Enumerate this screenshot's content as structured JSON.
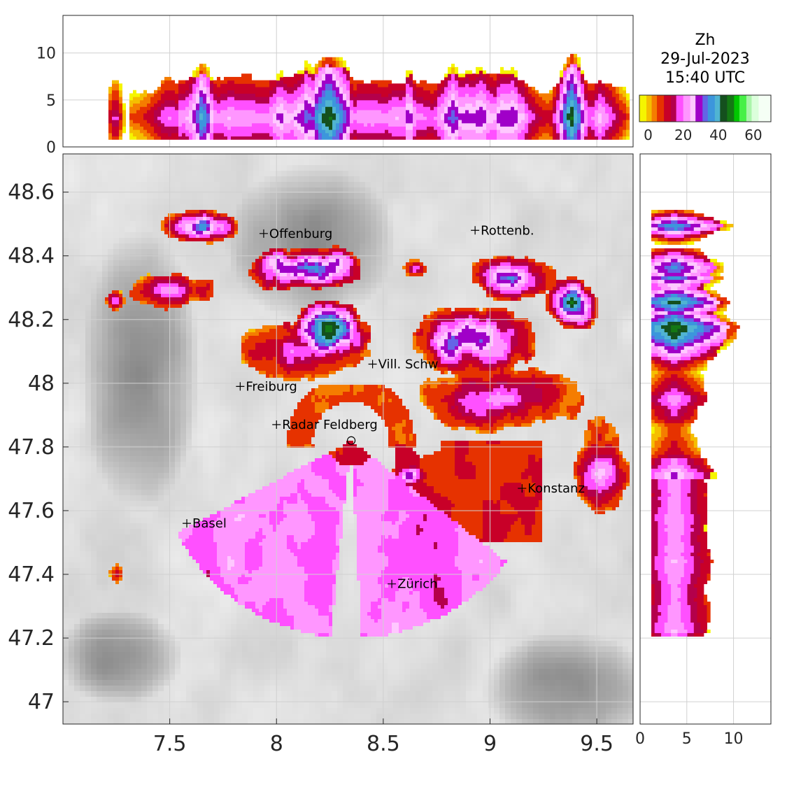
{
  "legend": {
    "title_lines": [
      "Zh",
      "29-Jul-2023",
      "15:40 UTC"
    ],
    "ticks": [
      {
        "value": 0,
        "label": "0"
      },
      {
        "value": 20,
        "label": "20"
      },
      {
        "value": 40,
        "label": "40"
      },
      {
        "value": 60,
        "label": "60"
      }
    ],
    "range": [
      -5,
      70
    ],
    "colors": [
      "#f5f500",
      "#f5be00",
      "#f57d00",
      "#e63200",
      "#c80028",
      "#b4004b",
      "#ff50ff",
      "#ff96ff",
      "#ffc8ff",
      "#a000c8",
      "#6464e6",
      "#3c96dc",
      "#50b4d2",
      "#14501e",
      "#147814",
      "#00c800",
      "#46f046",
      "#aaf5aa",
      "#dcffdc",
      "#f5fff5"
    ],
    "bounds": [
      -5,
      -1,
      2,
      5,
      9,
      13,
      16,
      20,
      24,
      27,
      31,
      34,
      38,
      41,
      45,
      49,
      52,
      56,
      59,
      63,
      70
    ]
  },
  "chart_data": [
    {
      "name": "map",
      "type": "heatmap",
      "xlim": [
        7.0,
        9.67
      ],
      "ylim": [
        46.93,
        48.72
      ],
      "xticks": [
        {
          "value": 7.5,
          "label": "7.5"
        },
        {
          "value": 8,
          "label": "8"
        },
        {
          "value": 8.5,
          "label": "8.5"
        },
        {
          "value": 9,
          "label": "9"
        },
        {
          "value": 9.5,
          "label": "9.5"
        }
      ],
      "yticks": [
        {
          "value": 47.0,
          "label": "47"
        },
        {
          "value": 47.2,
          "label": "47.2"
        },
        {
          "value": 47.4,
          "label": "47.4"
        },
        {
          "value": 47.6,
          "label": "47.6"
        },
        {
          "value": 47.8,
          "label": "47.8"
        },
        {
          "value": 48.0,
          "label": "48"
        },
        {
          "value": 48.2,
          "label": "48.2"
        },
        {
          "value": 48.4,
          "label": "48.4"
        },
        {
          "value": 48.6,
          "label": "48.6"
        }
      ],
      "radar_site": {
        "lon": 8.35,
        "lat": 47.82
      },
      "cities": [
        {
          "name": "Offenburg",
          "lon": 7.94,
          "lat": 48.47
        },
        {
          "name": "Rottenb.",
          "lon": 8.93,
          "lat": 48.48
        },
        {
          "name": "Vill. Schw",
          "lon": 8.45,
          "lat": 48.06
        },
        {
          "name": "Freiburg",
          "lon": 7.83,
          "lat": 47.99
        },
        {
          "name": "Radar Feldberg",
          "lon": 8.0,
          "lat": 47.87
        },
        {
          "name": "Konstanz",
          "lon": 9.15,
          "lat": 47.67
        },
        {
          "name": "Basel",
          "lon": 7.58,
          "lat": 47.56
        },
        {
          "name": "Zürich",
          "lon": 8.54,
          "lat": 47.37
        }
      ],
      "cells": [
        {
          "lon": 7.65,
          "lat": 48.49,
          "rx": 0.17,
          "ry": 0.05,
          "peak": 36
        },
        {
          "lon": 7.5,
          "lat": 48.29,
          "rx": 0.18,
          "ry": 0.06,
          "peak": 30
        },
        {
          "lon": 7.25,
          "lat": 48.26,
          "rx": 0.04,
          "ry": 0.03,
          "peak": 22
        },
        {
          "lon": 8.15,
          "lat": 48.36,
          "rx": 0.25,
          "ry": 0.07,
          "peak": 44
        },
        {
          "lon": 8.25,
          "lat": 48.17,
          "rx": 0.2,
          "ry": 0.09,
          "peak": 47
        },
        {
          "lon": 8.1,
          "lat": 48.1,
          "rx": 0.3,
          "ry": 0.08,
          "peak": 20
        },
        {
          "lon": 8.65,
          "lat": 48.36,
          "rx": 0.06,
          "ry": 0.03,
          "peak": 24
        },
        {
          "lon": 9.1,
          "lat": 48.33,
          "rx": 0.2,
          "ry": 0.07,
          "peak": 38
        },
        {
          "lon": 9.38,
          "lat": 48.25,
          "rx": 0.12,
          "ry": 0.08,
          "peak": 42
        },
        {
          "lon": 8.9,
          "lat": 48.13,
          "rx": 0.3,
          "ry": 0.11,
          "peak": 36
        },
        {
          "lon": 9.05,
          "lat": 47.95,
          "rx": 0.35,
          "ry": 0.1,
          "peak": 24
        },
        {
          "lon": 9.52,
          "lat": 47.73,
          "rx": 0.12,
          "ry": 0.14,
          "peak": 25
        },
        {
          "lon": 8.62,
          "lat": 47.71,
          "rx": 0.09,
          "ry": 0.04,
          "peak": 35
        },
        {
          "lon": 7.25,
          "lat": 47.4,
          "rx": 0.04,
          "ry": 0.03,
          "peak": 14
        }
      ],
      "terrain": [
        {
          "lon": 7.35,
          "lat": 48.05,
          "rx": 0.28,
          "ry": 0.45
        },
        {
          "lon": 8.15,
          "lat": 48.45,
          "rx": 0.4,
          "ry": 0.25
        },
        {
          "lon": 9.35,
          "lat": 47.05,
          "rx": 0.4,
          "ry": 0.18
        },
        {
          "lon": 7.25,
          "lat": 47.15,
          "rx": 0.3,
          "ry": 0.15
        }
      ]
    },
    {
      "name": "top-panel",
      "type": "heatmap",
      "xlim": [
        7.0,
        9.67
      ],
      "ylim": [
        0,
        14
      ],
      "yticks": [
        {
          "value": 0,
          "label": "0"
        },
        {
          "value": 5,
          "label": "5"
        },
        {
          "value": 10,
          "label": "10"
        }
      ]
    },
    {
      "name": "right-panel",
      "type": "heatmap",
      "xlim": [
        0,
        14
      ],
      "ylim": [
        46.93,
        48.72
      ],
      "xticks": [
        {
          "value": 0,
          "label": "0"
        },
        {
          "value": 5,
          "label": "5"
        },
        {
          "value": 10,
          "label": "10"
        }
      ]
    }
  ]
}
